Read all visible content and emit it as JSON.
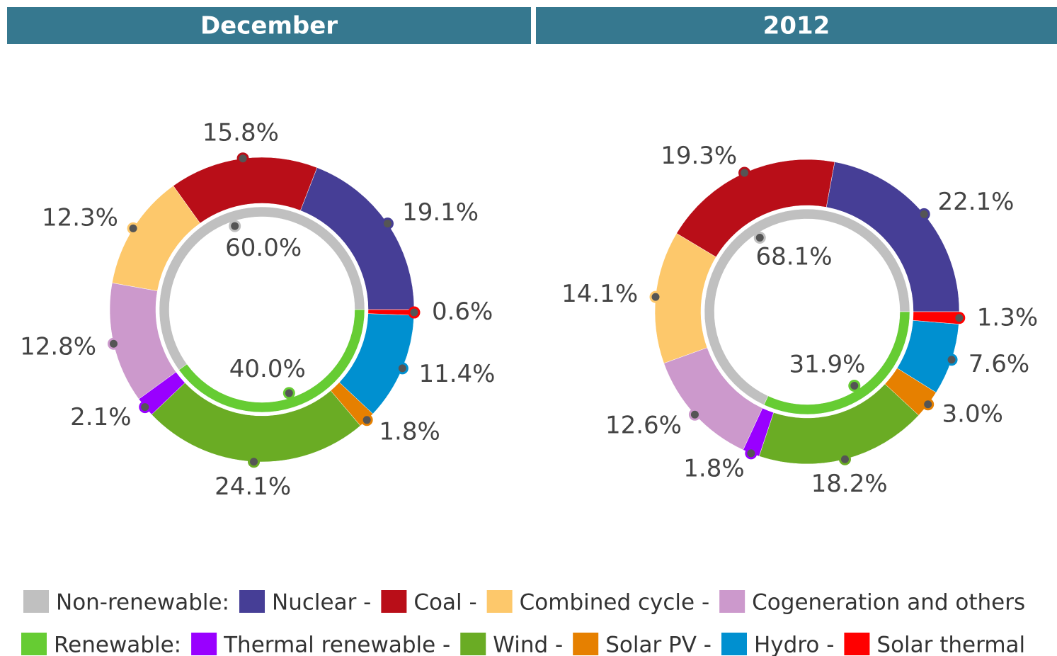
{
  "chart_data": [
    {
      "type": "donut",
      "title": "December",
      "outer": {
        "values": [
          19.1,
          15.8,
          12.3,
          12.8,
          2.1,
          24.1,
          1.8,
          11.4,
          0.6
        ],
        "value_labels": [
          "19.1%",
          "15.8%",
          "12.3%",
          "12.8%",
          "2.1%",
          "24.1%",
          "1.8%",
          "11.4%",
          "0.6%"
        ],
        "colors": [
          "#463e96",
          "#b90e18",
          "#fdc86b",
          "#cc99cc",
          "#9900ff",
          "#6aac24",
          "#e68000",
          "#0090d0",
          "#ff0000"
        ]
      },
      "inner": {
        "values": [
          60.0,
          40.0
        ],
        "value_labels": [
          "60.0%",
          "40.0%"
        ],
        "colors": [
          "#c0c0c0",
          "#66cc33"
        ]
      }
    },
    {
      "type": "donut",
      "title": "2012",
      "outer": {
        "values": [
          22.1,
          19.3,
          14.1,
          12.6,
          1.8,
          18.2,
          3.0,
          7.6,
          1.3
        ],
        "value_labels": [
          "22.1%",
          "19.3%",
          "14.1%",
          "12.6%",
          "1.8%",
          "18.2%",
          "3.0%",
          "7.6%",
          "1.3%"
        ],
        "colors": [
          "#463e96",
          "#b90e18",
          "#fdc86b",
          "#cc99cc",
          "#9900ff",
          "#6aac24",
          "#e68000",
          "#0090d0",
          "#ff0000"
        ]
      },
      "inner": {
        "values": [
          68.1,
          31.9
        ],
        "value_labels": [
          "68.1%",
          "31.9%"
        ],
        "colors": [
          "#c0c0c0",
          "#66cc33"
        ]
      }
    }
  ],
  "legend": {
    "rows": [
      [
        {
          "label": "Non-renewable:",
          "color": "#c0c0c0"
        },
        {
          "label": "Nuclear -",
          "color": "#463e96"
        },
        {
          "label": "Coal -",
          "color": "#b90e18"
        },
        {
          "label": "Combined cycle -",
          "color": "#fdc86b"
        },
        {
          "label": "Cogeneration and others",
          "color": "#cc99cc"
        }
      ],
      [
        {
          "label": "Renewable:",
          "color": "#66cc33"
        },
        {
          "label": "Thermal renewable -",
          "color": "#9900ff"
        },
        {
          "label": "Wind -",
          "color": "#6aac24"
        },
        {
          "label": "Solar PV -",
          "color": "#e68000"
        },
        {
          "label": "Hydro -",
          "color": "#0090d0"
        },
        {
          "label": "Solar thermal",
          "color": "#ff0000"
        }
      ]
    ]
  }
}
